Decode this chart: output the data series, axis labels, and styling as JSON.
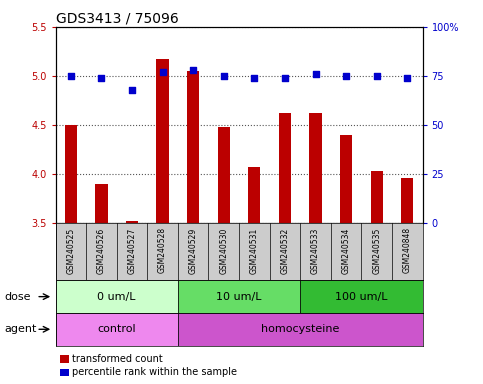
{
  "title": "GDS3413 / 75096",
  "samples": [
    "GSM240525",
    "GSM240526",
    "GSM240527",
    "GSM240528",
    "GSM240529",
    "GSM240530",
    "GSM240531",
    "GSM240532",
    "GSM240533",
    "GSM240534",
    "GSM240535",
    "GSM240848"
  ],
  "transformed_count": [
    4.5,
    3.9,
    3.52,
    5.17,
    5.05,
    4.48,
    4.07,
    4.62,
    4.62,
    4.4,
    4.03,
    3.96
  ],
  "percentile_rank": [
    75,
    74,
    68,
    77,
    78,
    75,
    74,
    74,
    76,
    75,
    75,
    74
  ],
  "ylim_left": [
    3.5,
    5.5
  ],
  "ylim_right": [
    0,
    100
  ],
  "yticks_left": [
    3.5,
    4.0,
    4.5,
    5.0,
    5.5
  ],
  "yticks_right": [
    0,
    25,
    50,
    75,
    100
  ],
  "bar_color": "#bb0000",
  "dot_color": "#0000cc",
  "dose_groups": [
    {
      "label": "0 um/L",
      "start": 0,
      "end": 4,
      "color": "#ccffcc"
    },
    {
      "label": "10 um/L",
      "start": 4,
      "end": 8,
      "color": "#66dd66"
    },
    {
      "label": "100 um/L",
      "start": 8,
      "end": 12,
      "color": "#33bb33"
    }
  ],
  "agent_groups": [
    {
      "label": "control",
      "start": 0,
      "end": 4,
      "color": "#ee88ee"
    },
    {
      "label": "homocysteine",
      "start": 4,
      "end": 12,
      "color": "#cc55cc"
    }
  ],
  "dose_label": "dose",
  "agent_label": "agent",
  "legend_bar_label": "transformed count",
  "legend_dot_label": "percentile rank within the sample",
  "bg_color": "#ffffff",
  "sample_bg_color": "#cccccc",
  "title_fontsize": 10,
  "tick_fontsize": 7,
  "label_fontsize": 8,
  "sample_fontsize": 5.5,
  "legend_fontsize": 7
}
